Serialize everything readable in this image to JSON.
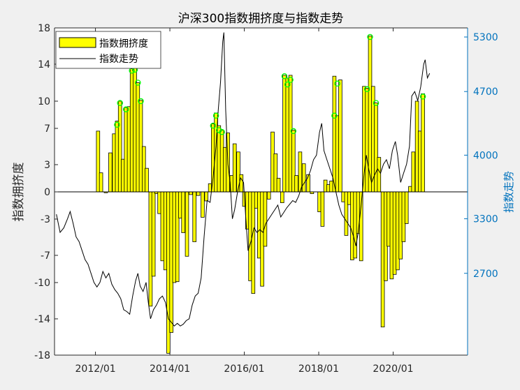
{
  "chart_data": {
    "type": "bar+line",
    "title": "沪深300指数拥挤度与指数走势",
    "ylabel_left": "指数拥挤度",
    "ylabel_right": "指数走势",
    "legend": [
      "指数拥挤度",
      "指数走势"
    ],
    "legend_placement": "top-left",
    "grid": false,
    "colors": {
      "bar_fill": "#ffff00",
      "bar_edge": "#000000",
      "line": "#000000",
      "marker": "#00ff00",
      "right_axis": "#0072bd"
    },
    "xlim": [
      2010.9,
      2022.0
    ],
    "ylim_left": [
      -18,
      18
    ],
    "ylim_right": [
      1800,
      5400
    ],
    "x_ticks": [
      "2012/01",
      "2014/01",
      "2016/01",
      "2018/01",
      "2020/01"
    ],
    "y_ticks_left": [
      -18,
      -14,
      -10,
      -7,
      -3,
      0,
      3,
      7,
      10,
      14,
      18
    ],
    "y_ticks_right": [
      2700,
      3300,
      4000,
      4700,
      5300
    ],
    "bars": [
      {
        "x": 2012.07,
        "y": 6.7
      },
      {
        "x": 2012.15,
        "y": 2.1
      },
      {
        "x": 2012.28,
        "y": -0.1
      },
      {
        "x": 2012.4,
        "y": 4.3
      },
      {
        "x": 2012.5,
        "y": 6.4
      },
      {
        "x": 2012.58,
        "y": 7.8
      },
      {
        "x": 2012.66,
        "y": 10.0
      },
      {
        "x": 2012.74,
        "y": 3.6
      },
      {
        "x": 2012.82,
        "y": 9.3
      },
      {
        "x": 2012.9,
        "y": 9.4
      },
      {
        "x": 2012.98,
        "y": 13.5
      },
      {
        "x": 2013.06,
        "y": 13.6
      },
      {
        "x": 2013.14,
        "y": 12.0
      },
      {
        "x": 2013.22,
        "y": 10.1
      },
      {
        "x": 2013.3,
        "y": 5.0
      },
      {
        "x": 2013.38,
        "y": 2.6
      },
      {
        "x": 2013.48,
        "y": -12.6
      },
      {
        "x": 2013.56,
        "y": -9.3
      },
      {
        "x": 2013.64,
        "y": -0.2
      },
      {
        "x": 2013.72,
        "y": -2.4
      },
      {
        "x": 2013.8,
        "y": -7.6
      },
      {
        "x": 2013.88,
        "y": -8.6
      },
      {
        "x": 2013.96,
        "y": -17.8
      },
      {
        "x": 2014.04,
        "y": -15.5
      },
      {
        "x": 2014.12,
        "y": -10.0
      },
      {
        "x": 2014.2,
        "y": -9.9
      },
      {
        "x": 2014.28,
        "y": -2.9
      },
      {
        "x": 2014.36,
        "y": -4.5
      },
      {
        "x": 2014.46,
        "y": -7.1
      },
      {
        "x": 2014.56,
        "y": -0.3
      },
      {
        "x": 2014.66,
        "y": -5.5
      },
      {
        "x": 2014.76,
        "y": -0.4
      },
      {
        "x": 2014.88,
        "y": -2.8
      },
      {
        "x": 2014.98,
        "y": -1.0
      },
      {
        "x": 2015.08,
        "y": 0.9
      },
      {
        "x": 2015.16,
        "y": 7.5
      },
      {
        "x": 2015.24,
        "y": 8.7
      },
      {
        "x": 2015.32,
        "y": 7.3
      },
      {
        "x": 2015.4,
        "y": 6.8
      },
      {
        "x": 2015.48,
        "y": 4.9
      },
      {
        "x": 2015.56,
        "y": 6.5
      },
      {
        "x": 2015.66,
        "y": 1.8
      },
      {
        "x": 2015.74,
        "y": 5.3
      },
      {
        "x": 2015.84,
        "y": 4.4
      },
      {
        "x": 2015.92,
        "y": 1.9
      },
      {
        "x": 2016.0,
        "y": -1.6
      },
      {
        "x": 2016.08,
        "y": -4.1
      },
      {
        "x": 2016.16,
        "y": -9.8
      },
      {
        "x": 2016.24,
        "y": -11.2
      },
      {
        "x": 2016.32,
        "y": -1.8
      },
      {
        "x": 2016.4,
        "y": -7.3
      },
      {
        "x": 2016.48,
        "y": -10.4
      },
      {
        "x": 2016.56,
        "y": -6.0
      },
      {
        "x": 2016.66,
        "y": -0.8
      },
      {
        "x": 2016.76,
        "y": 6.6
      },
      {
        "x": 2016.84,
        "y": 4.2
      },
      {
        "x": 2016.92,
        "y": 1.5
      },
      {
        "x": 2017.02,
        "y": -1.2
      },
      {
        "x": 2017.08,
        "y": 12.8
      },
      {
        "x": 2017.16,
        "y": 12.5
      },
      {
        "x": 2017.24,
        "y": 12.8
      },
      {
        "x": 2017.32,
        "y": 6.8
      },
      {
        "x": 2017.4,
        "y": 1.8
      },
      {
        "x": 2017.5,
        "y": 4.4
      },
      {
        "x": 2017.6,
        "y": 3.1
      },
      {
        "x": 2017.72,
        "y": 1.9
      },
      {
        "x": 2017.82,
        "y": -0.2
      },
      {
        "x": 2018.02,
        "y": -2.2
      },
      {
        "x": 2018.1,
        "y": -3.8
      },
      {
        "x": 2018.18,
        "y": 1.3
      },
      {
        "x": 2018.26,
        "y": 0.8
      },
      {
        "x": 2018.34,
        "y": 1.2
      },
      {
        "x": 2018.42,
        "y": 12.7
      },
      {
        "x": 2018.5,
        "y": 8.4
      },
      {
        "x": 2018.58,
        "y": 12.3
      },
      {
        "x": 2018.66,
        "y": -1.1
      },
      {
        "x": 2018.74,
        "y": -4.8
      },
      {
        "x": 2018.82,
        "y": -1.4
      },
      {
        "x": 2018.9,
        "y": -7.5
      },
      {
        "x": 2018.98,
        "y": -7.3
      },
      {
        "x": 2019.06,
        "y": -4.6
      },
      {
        "x": 2019.14,
        "y": -7.6
      },
      {
        "x": 2019.22,
        "y": 11.6
      },
      {
        "x": 2019.3,
        "y": 11.4
      },
      {
        "x": 2019.38,
        "y": 17.1
      },
      {
        "x": 2019.46,
        "y": 11.6
      },
      {
        "x": 2019.54,
        "y": 9.8
      },
      {
        "x": 2019.62,
        "y": 3.8
      },
      {
        "x": 2019.72,
        "y": -14.9
      },
      {
        "x": 2019.8,
        "y": -9.8
      },
      {
        "x": 2019.88,
        "y": -6.0
      },
      {
        "x": 2019.96,
        "y": -9.6
      },
      {
        "x": 2020.04,
        "y": -9.1
      },
      {
        "x": 2020.12,
        "y": -8.6
      },
      {
        "x": 2020.2,
        "y": -7.4
      },
      {
        "x": 2020.28,
        "y": -5.5
      },
      {
        "x": 2020.36,
        "y": -3.5
      },
      {
        "x": 2020.46,
        "y": 0.6
      },
      {
        "x": 2020.54,
        "y": 4.4
      },
      {
        "x": 2020.64,
        "y": 10.0
      },
      {
        "x": 2020.72,
        "y": 6.7
      },
      {
        "x": 2020.8,
        "y": 10.8
      }
    ],
    "markers": [
      {
        "x": 2012.58,
        "y": 7.4
      },
      {
        "x": 2012.66,
        "y": 9.8
      },
      {
        "x": 2012.82,
        "y": 9.1
      },
      {
        "x": 2012.98,
        "y": 13.3
      },
      {
        "x": 2013.06,
        "y": 13.4
      },
      {
        "x": 2013.14,
        "y": 12.0
      },
      {
        "x": 2013.22,
        "y": 10.0
      },
      {
        "x": 2015.16,
        "y": 7.3
      },
      {
        "x": 2015.24,
        "y": 8.4
      },
      {
        "x": 2015.32,
        "y": 6.8
      },
      {
        "x": 2015.4,
        "y": 6.6
      },
      {
        "x": 2017.08,
        "y": 12.7
      },
      {
        "x": 2017.16,
        "y": 11.8
      },
      {
        "x": 2017.24,
        "y": 12.3
      },
      {
        "x": 2017.32,
        "y": 6.7
      },
      {
        "x": 2018.42,
        "y": 8.4
      },
      {
        "x": 2018.5,
        "y": 11.9
      },
      {
        "x": 2019.3,
        "y": 11.3
      },
      {
        "x": 2019.38,
        "y": 17.0
      },
      {
        "x": 2019.54,
        "y": 9.8
      },
      {
        "x": 2020.8,
        "y": 10.5
      }
    ],
    "index_line": [
      [
        2010.95,
        3350
      ],
      [
        2011.05,
        3150
      ],
      [
        2011.15,
        3200
      ],
      [
        2011.25,
        3300
      ],
      [
        2011.32,
        3380
      ],
      [
        2011.4,
        3250
      ],
      [
        2011.48,
        3100
      ],
      [
        2011.56,
        3050
      ],
      [
        2011.64,
        2950
      ],
      [
        2011.72,
        2850
      ],
      [
        2011.8,
        2800
      ],
      [
        2011.88,
        2700
      ],
      [
        2011.96,
        2600
      ],
      [
        2012.04,
        2550
      ],
      [
        2012.12,
        2600
      ],
      [
        2012.2,
        2720
      ],
      [
        2012.28,
        2650
      ],
      [
        2012.36,
        2700
      ],
      [
        2012.44,
        2580
      ],
      [
        2012.52,
        2520
      ],
      [
        2012.6,
        2480
      ],
      [
        2012.68,
        2420
      ],
      [
        2012.76,
        2300
      ],
      [
        2012.84,
        2280
      ],
      [
        2012.92,
        2250
      ],
      [
        2013.0,
        2450
      ],
      [
        2013.08,
        2620
      ],
      [
        2013.14,
        2700
      ],
      [
        2013.2,
        2560
      ],
      [
        2013.28,
        2500
      ],
      [
        2013.36,
        2600
      ],
      [
        2013.42,
        2380
      ],
      [
        2013.48,
        2200
      ],
      [
        2013.56,
        2300
      ],
      [
        2013.64,
        2350
      ],
      [
        2013.72,
        2420
      ],
      [
        2013.8,
        2450
      ],
      [
        2013.88,
        2380
      ],
      [
        2013.96,
        2200
      ],
      [
        2014.04,
        2160
      ],
      [
        2014.12,
        2120
      ],
      [
        2014.2,
        2150
      ],
      [
        2014.28,
        2120
      ],
      [
        2014.36,
        2140
      ],
      [
        2014.44,
        2180
      ],
      [
        2014.52,
        2200
      ],
      [
        2014.6,
        2350
      ],
      [
        2014.68,
        2450
      ],
      [
        2014.76,
        2480
      ],
      [
        2014.84,
        2650
      ],
      [
        2014.92,
        3100
      ],
      [
        2015.0,
        3500
      ],
      [
        2015.08,
        3480
      ],
      [
        2015.16,
        3750
      ],
      [
        2015.24,
        4100
      ],
      [
        2015.3,
        4500
      ],
      [
        2015.36,
        4800
      ],
      [
        2015.42,
        5250
      ],
      [
        2015.45,
        5350
      ],
      [
        2015.5,
        4500
      ],
      [
        2015.56,
        3900
      ],
      [
        2015.62,
        3700
      ],
      [
        2015.68,
        3300
      ],
      [
        2015.74,
        3400
      ],
      [
        2015.82,
        3600
      ],
      [
        2015.9,
        3750
      ],
      [
        2015.98,
        3700
      ],
      [
        2016.04,
        3300
      ],
      [
        2016.1,
        2950
      ],
      [
        2016.18,
        3050
      ],
      [
        2016.26,
        3200
      ],
      [
        2016.34,
        3150
      ],
      [
        2016.42,
        3180
      ],
      [
        2016.5,
        3150
      ],
      [
        2016.58,
        3250
      ],
      [
        2016.66,
        3300
      ],
      [
        2016.74,
        3350
      ],
      [
        2016.82,
        3400
      ],
      [
        2016.9,
        3450
      ],
      [
        2016.98,
        3320
      ],
      [
        2017.06,
        3370
      ],
      [
        2017.14,
        3420
      ],
      [
        2017.22,
        3460
      ],
      [
        2017.3,
        3500
      ],
      [
        2017.38,
        3480
      ],
      [
        2017.46,
        3550
      ],
      [
        2017.54,
        3650
      ],
      [
        2017.62,
        3700
      ],
      [
        2017.7,
        3750
      ],
      [
        2017.78,
        3830
      ],
      [
        2017.86,
        3950
      ],
      [
        2017.94,
        4000
      ],
      [
        2018.02,
        4250
      ],
      [
        2018.08,
        4350
      ],
      [
        2018.14,
        4050
      ],
      [
        2018.22,
        3950
      ],
      [
        2018.3,
        3850
      ],
      [
        2018.38,
        3750
      ],
      [
        2018.46,
        3600
      ],
      [
        2018.54,
        3450
      ],
      [
        2018.62,
        3350
      ],
      [
        2018.7,
        3300
      ],
      [
        2018.78,
        3250
      ],
      [
        2018.86,
        3200
      ],
      [
        2018.94,
        3100
      ],
      [
        2019.0,
        3000
      ],
      [
        2019.06,
        3150
      ],
      [
        2019.14,
        3450
      ],
      [
        2019.22,
        3800
      ],
      [
        2019.28,
        4000
      ],
      [
        2019.34,
        3850
      ],
      [
        2019.42,
        3700
      ],
      [
        2019.5,
        3780
      ],
      [
        2019.58,
        3850
      ],
      [
        2019.66,
        3800
      ],
      [
        2019.74,
        3900
      ],
      [
        2019.82,
        3950
      ],
      [
        2019.9,
        3850
      ],
      [
        2019.98,
        4050
      ],
      [
        2020.06,
        4150
      ],
      [
        2020.12,
        4000
      ],
      [
        2020.2,
        3700
      ],
      [
        2020.28,
        3800
      ],
      [
        2020.36,
        3900
      ],
      [
        2020.44,
        4100
      ],
      [
        2020.5,
        4650
      ],
      [
        2020.58,
        4700
      ],
      [
        2020.66,
        4600
      ],
      [
        2020.74,
        4750
      ],
      [
        2020.82,
        5000
      ],
      [
        2020.86,
        5050
      ],
      [
        2020.92,
        4850
      ],
      [
        2020.98,
        4900
      ]
    ]
  }
}
